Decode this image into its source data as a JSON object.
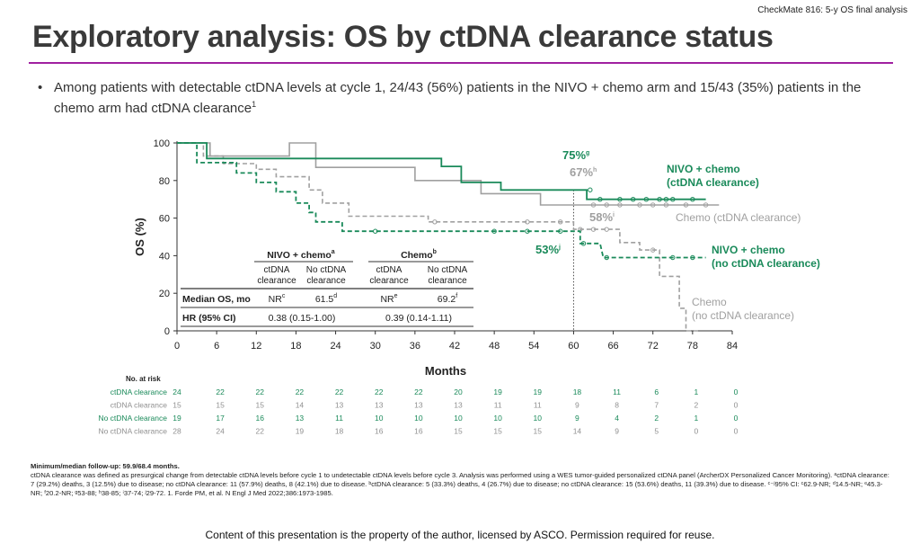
{
  "header": {
    "tagline": "CheckMate 816: 5-y OS final analysis",
    "title": "Exploratory analysis: OS by ctDNA clearance status",
    "bullet": "Among patients with detectable ctDNA levels at cycle 1, 24/43 (56%) patients in the NIVO + chemo arm and 15/43 (35%) patients in the chemo arm had ctDNA clearance",
    "bullet_sup": "1"
  },
  "colors": {
    "green": "#1a8a5a",
    "gray": "#a0a0a0",
    "purple": "#a020a0"
  },
  "chart_data": {
    "type": "line",
    "title": "",
    "xlabel": "Months",
    "ylabel": "OS (%)",
    "xlim": [
      0,
      84
    ],
    "ylim": [
      0,
      100
    ],
    "x_ticks": [
      0,
      6,
      12,
      18,
      24,
      30,
      36,
      42,
      48,
      54,
      60,
      66,
      72,
      78,
      84
    ],
    "y_ticks": [
      0,
      20,
      40,
      60,
      80,
      100
    ],
    "reference_x": 60,
    "series": [
      {
        "name": "NIVO + chemo (ctDNA clearance)",
        "color": "#1a8a5a",
        "dashed": false,
        "points": [
          [
            0,
            100
          ],
          [
            4.5,
            100
          ],
          [
            4.5,
            91.7
          ],
          [
            16.5,
            91.7
          ],
          [
            23,
            91.7
          ],
          [
            40,
            91.7
          ],
          [
            40,
            87.5
          ],
          [
            43,
            87.5
          ],
          [
            43,
            79
          ],
          [
            49,
            79
          ],
          [
            49,
            75
          ],
          [
            60,
            75
          ],
          [
            60,
            75
          ],
          [
            62,
            75
          ],
          [
            62,
            70
          ],
          [
            80,
            70
          ]
        ],
        "censor": [
          [
            62.5,
            75
          ],
          [
            64,
            70
          ],
          [
            67,
            70
          ],
          [
            69,
            70
          ],
          [
            71,
            70
          ],
          [
            73,
            70
          ],
          [
            74,
            70
          ],
          [
            75,
            70
          ],
          [
            78,
            70
          ]
        ]
      },
      {
        "name": "Chemo (ctDNA clearance)",
        "color": "#a0a0a0",
        "dashed": false,
        "points": [
          [
            0,
            100
          ],
          [
            5,
            100
          ],
          [
            5,
            93
          ],
          [
            17,
            93
          ],
          [
            17,
            100
          ],
          [
            21,
            100
          ],
          [
            21,
            87
          ],
          [
            36,
            87
          ],
          [
            36,
            80
          ],
          [
            46,
            80
          ],
          [
            46,
            73
          ],
          [
            55,
            73
          ],
          [
            55,
            67
          ],
          [
            62,
            67
          ],
          [
            62,
            67
          ],
          [
            82,
            67
          ]
        ],
        "censor": [
          [
            63,
            67
          ],
          [
            65,
            67
          ],
          [
            67,
            67
          ],
          [
            70,
            67
          ],
          [
            72,
            67
          ],
          [
            74,
            67
          ],
          [
            77,
            67
          ],
          [
            80,
            67
          ]
        ]
      },
      {
        "name": "NIVO + chemo (no ctDNA clearance)",
        "color": "#1a8a5a",
        "dashed": true,
        "points": [
          [
            0,
            100
          ],
          [
            3,
            100
          ],
          [
            3,
            89.5
          ],
          [
            9,
            89.5
          ],
          [
            9,
            84
          ],
          [
            12,
            84
          ],
          [
            12,
            79
          ],
          [
            15,
            79
          ],
          [
            15,
            74
          ],
          [
            18,
            74
          ],
          [
            18,
            68
          ],
          [
            20,
            68
          ],
          [
            20,
            63
          ],
          [
            21,
            63
          ],
          [
            21,
            58
          ],
          [
            25,
            58
          ],
          [
            25,
            53
          ],
          [
            30,
            53
          ],
          [
            30,
            53
          ],
          [
            58,
            53
          ],
          [
            58,
            53
          ],
          [
            61,
            53
          ],
          [
            61,
            46.5
          ],
          [
            64,
            46.5
          ],
          [
            64,
            46.5
          ],
          [
            64.5,
            39
          ],
          [
            80,
            39
          ]
        ],
        "censor": [
          [
            30,
            53
          ],
          [
            48,
            53
          ],
          [
            53,
            53
          ],
          [
            58,
            53
          ],
          [
            61.5,
            46.5
          ],
          [
            65,
            39
          ],
          [
            75,
            39
          ],
          [
            78,
            39
          ]
        ]
      },
      {
        "name": "Chemo (no ctDNA clearance)",
        "color": "#a0a0a0",
        "dashed": true,
        "points": [
          [
            0,
            100
          ],
          [
            4,
            100
          ],
          [
            4,
            93
          ],
          [
            7,
            93
          ],
          [
            7,
            89
          ],
          [
            12,
            89
          ],
          [
            12,
            86
          ],
          [
            15,
            86
          ],
          [
            15,
            82
          ],
          [
            20,
            82
          ],
          [
            20,
            75
          ],
          [
            22,
            75
          ],
          [
            22,
            68
          ],
          [
            26,
            68
          ],
          [
            26,
            61
          ],
          [
            38,
            61
          ],
          [
            38,
            58
          ],
          [
            48,
            58
          ],
          [
            48,
            58
          ],
          [
            60,
            58
          ],
          [
            60,
            54
          ],
          [
            67,
            54
          ],
          [
            67,
            47
          ],
          [
            70,
            47
          ],
          [
            70,
            43
          ],
          [
            73,
            43
          ],
          [
            73,
            29
          ],
          [
            76,
            29
          ],
          [
            76,
            12
          ],
          [
            77,
            12
          ],
          [
            77,
            0
          ],
          [
            79,
            0
          ]
        ],
        "censor": [
          [
            39,
            58
          ],
          [
            53,
            58
          ],
          [
            58,
            58
          ],
          [
            61,
            54
          ],
          [
            63,
            54
          ],
          [
            65,
            54
          ],
          [
            72,
            43
          ]
        ]
      }
    ],
    "annotations": {
      "nivo_clear_pct": "75%",
      "nivo_clear_sup": "g",
      "chemo_clear_pct": "67%",
      "chemo_clear_sup": "h",
      "chemo_noclear_pct": "58%",
      "chemo_noclear_sup": "i",
      "nivo_noclear_pct": "53%",
      "nivo_noclear_sup": "j",
      "label_nivo_clear_1": "NIVO + chemo",
      "label_nivo_clear_2": "(ctDNA clearance)",
      "label_chemo_clear": "Chemo (ctDNA clearance)",
      "label_nivo_noclear_1": "NIVO + chemo",
      "label_nivo_noclear_2": "(no ctDNA clearance)",
      "label_chemo_noclear_1": "Chemo",
      "label_chemo_noclear_2": "(no ctDNA clearance)"
    },
    "inset_table": {
      "group_headers": [
        "NIVO + chemo",
        "Chemo"
      ],
      "group_sups": [
        "a",
        "b"
      ],
      "sub_headers": [
        [
          "ctDNA",
          "clearance"
        ],
        [
          "No ctDNA",
          "clearance"
        ],
        [
          "ctDNA",
          "clearance"
        ],
        [
          "No ctDNA",
          "clearance"
        ]
      ],
      "rows": [
        {
          "label": "Median OS, mo",
          "cells": [
            [
              "NR",
              "c"
            ],
            [
              "61.5",
              "d"
            ],
            [
              "NR",
              "e"
            ],
            [
              "69.2",
              "f"
            ]
          ]
        },
        {
          "label": "HR (95% CI)",
          "cells": [
            [
              "0.38 (0.15-1.00)",
              ""
            ],
            [
              "0.39 (0.14-1.11)",
              ""
            ]
          ]
        }
      ]
    },
    "at_risk": {
      "title": "No. at risk",
      "rows": [
        {
          "label": "ctDNA clearance",
          "color": "#1a8a5a",
          "values": [
            24,
            22,
            22,
            22,
            22,
            22,
            22,
            20,
            19,
            19,
            18,
            11,
            6,
            1,
            0
          ]
        },
        {
          "label": "ctDNA clearance",
          "color": "#909090",
          "values": [
            15,
            15,
            15,
            14,
            13,
            13,
            13,
            13,
            11,
            11,
            9,
            8,
            7,
            2,
            0
          ]
        },
        {
          "label": "No ctDNA clearance",
          "color": "#1a8a5a",
          "values": [
            19,
            17,
            16,
            13,
            11,
            10,
            10,
            10,
            10,
            10,
            9,
            4,
            2,
            1,
            0
          ]
        },
        {
          "label": "No ctDNA clearance",
          "color": "#909090",
          "values": [
            28,
            24,
            22,
            19,
            18,
            16,
            16,
            15,
            15,
            15,
            14,
            9,
            5,
            0,
            0
          ]
        }
      ]
    }
  },
  "footer": {
    "line1": "Minimum/median follow-up: 59.9/68.4 months.",
    "line2": "ctDNA clearance was defined as presurgical change from detectable ctDNA levels before cycle 1 to undetectable ctDNA levels before cycle 3. Analysis was performed using a WES tumor-guided personalized ctDNA panel (ArcherDX Personalized Cancer Monitoring). ᵃctDNA clearance: 7 (29.2%) deaths, 3 (12.5%) due to disease; no ctDNA clearance: 11 (57.9%) deaths, 8 (42.1%) due to disease. ᵇctDNA clearance: 5 (33.3%) deaths, 4 (26.7%) due to disease; no ctDNA clearance: 15 (53.6%) deaths, 11 (39.3%) due to disease. ᶜ⁻ʲ95% CI: ᶜ62.9-NR; ᵈ14.5-NR; ᵉ45.3-NR; ᶠ20.2-NR; ᵍ53-88; ʰ38-85; ⁱ37-74; ʲ29-72. 1. Forde PM, et al. N Engl J Med 2022;386:1973-1985.",
    "copyright": "Content of this presentation is the property of the author, licensed by ASCO. Permission required for reuse."
  }
}
